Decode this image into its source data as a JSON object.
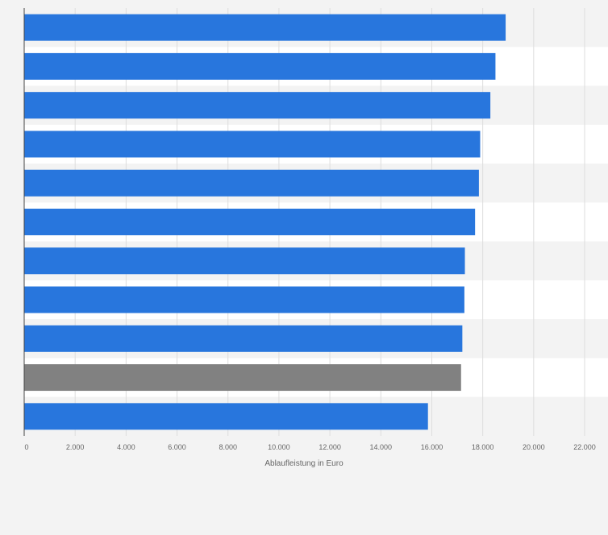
{
  "chart_data": {
    "type": "bar",
    "orientation": "horizontal",
    "title": "",
    "xlabel": "Ablaufleistung in Euro",
    "ylabel": "",
    "xlim": [
      0,
      22000
    ],
    "ticks": [
      0,
      2000,
      4000,
      6000,
      8000,
      10000,
      12000,
      14000,
      16000,
      18000,
      20000,
      22000
    ],
    "tick_labels": [
      "0",
      "2.000",
      "4.000",
      "6.000",
      "8.000",
      "10.000",
      "12.000",
      "14.000",
      "16.000",
      "18.000",
      "20.000",
      "22.000"
    ],
    "categories": [
      "",
      "",
      "",
      "",
      "",
      "",
      "",
      "",
      "",
      "",
      ""
    ],
    "values": [
      18900,
      18500,
      18300,
      17900,
      17850,
      17700,
      17300,
      17280,
      17200,
      17150,
      15850
    ],
    "colors": {
      "primary": "#2876dd",
      "highlight": "#818181",
      "highlight_index": 9,
      "band_light": "#f3f3f3",
      "band_white": "#ffffff",
      "grid": "#dddddd",
      "axis": "#444444",
      "text": "#666666"
    },
    "grid": true,
    "legend": "none"
  }
}
